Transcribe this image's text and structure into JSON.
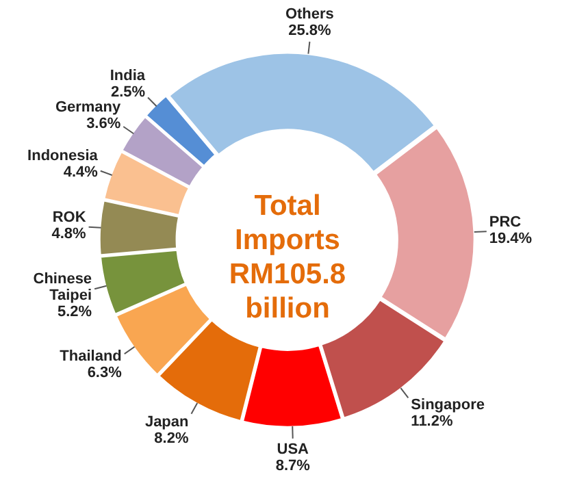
{
  "chart_data": {
    "type": "donut",
    "title": "Total Imports RM105.8 billion",
    "categories": [
      "Others",
      "PRC",
      "Singapore",
      "USA",
      "Japan",
      "Thailand",
      "Chinese Taipei",
      "ROK",
      "Indonesia",
      "Germany",
      "India"
    ],
    "values": [
      25.8,
      19.4,
      11.2,
      8.7,
      8.2,
      6.3,
      5.2,
      4.8,
      4.4,
      3.6,
      2.5
    ],
    "colors": [
      "#9dc3e6",
      "#e6a0a0",
      "#c0504d",
      "#ff0000",
      "#e46c0a",
      "#f9a651",
      "#77933c",
      "#948a54",
      "#fac090",
      "#b3a2c7",
      "#558ed5"
    ],
    "value_labels": [
      "25.8%",
      "19.4%",
      "11.2%",
      "8.7%",
      "8.2%",
      "6.3%",
      "5.2%",
      "4.8%",
      "4.4%",
      "3.6%",
      "2.5%"
    ],
    "legend": false
  }
}
